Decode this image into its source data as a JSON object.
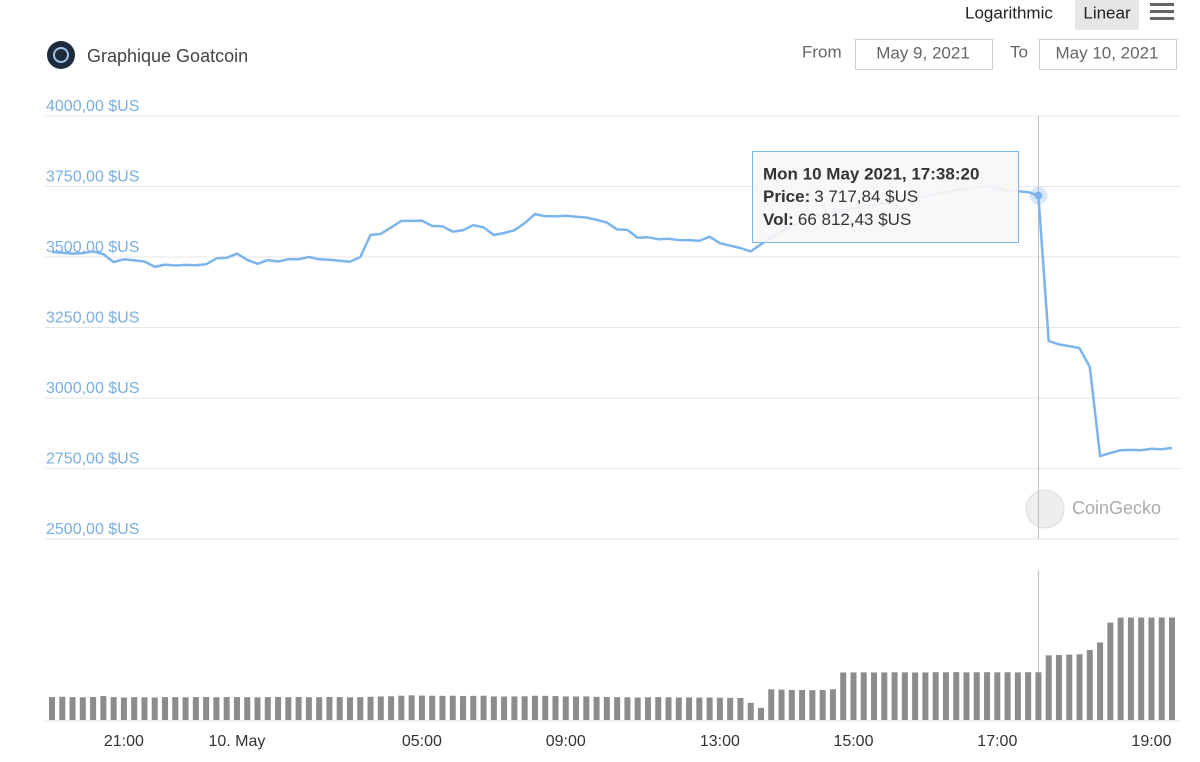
{
  "header": {
    "title": "Graphique Goatcoin",
    "scale_buttons": [
      "Logarithmic",
      "Linear"
    ],
    "from_label": "From",
    "from": "May 9, 2021",
    "to_label": "To",
    "to": "May 10, 2021"
  },
  "chart_data": [
    {
      "type": "line",
      "color": "#7cb5ec",
      "log_scale": false,
      "grid": true,
      "watermark": "CoinGecko",
      "ylim": [
        2500,
        4000
      ],
      "yticks": [
        {
          "value": 2500,
          "label": "2500,00 $US"
        },
        {
          "value": 2750,
          "label": "2750,00 $US"
        },
        {
          "value": 3000,
          "label": "3000,00 $US"
        },
        {
          "value": 3250,
          "label": "3250,00 $US"
        },
        {
          "value": 3500,
          "label": "3500,00 $US"
        },
        {
          "value": 3750,
          "label": "3750,00 $US"
        },
        {
          "value": 4000,
          "label": "4000,00 $US"
        }
      ],
      "values": [
        3518,
        3515,
        3512,
        3514,
        3520,
        3510,
        3482,
        3492,
        3488,
        3484,
        3465,
        3473,
        3470,
        3472,
        3471,
        3474,
        3495,
        3497,
        3512,
        3490,
        3476,
        3489,
        3484,
        3492,
        3492,
        3500,
        3492,
        3490,
        3487,
        3483,
        3500,
        3578,
        3582,
        3605,
        3628,
        3628,
        3629,
        3610,
        3609,
        3590,
        3595,
        3613,
        3605,
        3578,
        3585,
        3595,
        3620,
        3652,
        3645,
        3644,
        3646,
        3643,
        3640,
        3632,
        3622,
        3598,
        3596,
        3568,
        3570,
        3563,
        3565,
        3560,
        3560,
        3557,
        3572,
        3549,
        3540,
        3532,
        3520,
        3545,
        3570,
        3590,
        3610,
        3625,
        3640,
        3650,
        3660,
        3665,
        3672,
        3680,
        3685,
        3690,
        3695,
        3702,
        3708,
        3715,
        3722,
        3730,
        3738,
        3742,
        3748,
        3752,
        3745,
        3735,
        3733,
        3730,
        3717.84,
        3202,
        3190,
        3184,
        3177,
        3110,
        2794,
        2805,
        2815,
        2816,
        2815,
        2820,
        2818,
        2823
      ],
      "tooltip": {
        "index": 96,
        "date": "Mon 10 May 2021, 17:38:20",
        "price_label": "Price:",
        "price": "3 717,84 $US",
        "vol_label": "Vol:",
        "vol": "66 812,43 $US"
      }
    },
    {
      "type": "bar",
      "color": "#8c8c8c",
      "ylim": [
        0,
        210000
      ],
      "categories": [
        null,
        null,
        null,
        null,
        null,
        null,
        null,
        "21:00",
        null,
        null,
        null,
        null,
        null,
        null,
        null,
        null,
        null,
        null,
        "10. May",
        null,
        null,
        null,
        null,
        null,
        null,
        null,
        null,
        null,
        null,
        null,
        null,
        null,
        null,
        null,
        null,
        null,
        "05:00",
        null,
        null,
        null,
        null,
        null,
        null,
        null,
        null,
        null,
        null,
        null,
        null,
        null,
        "09:00",
        null,
        null,
        null,
        null,
        null,
        null,
        null,
        null,
        null,
        null,
        null,
        null,
        null,
        null,
        "13:00",
        null,
        null,
        null,
        null,
        null,
        null,
        null,
        null,
        null,
        null,
        null,
        null,
        "15:00",
        null,
        null,
        null,
        null,
        null,
        null,
        null,
        null,
        null,
        null,
        null,
        null,
        null,
        "17:00",
        null,
        null,
        null,
        null,
        null,
        null,
        null,
        null,
        null,
        null,
        null,
        null,
        null,
        null,
        "19:00",
        null,
        null
      ],
      "values": [
        32000,
        32500,
        32000,
        31800,
        32200,
        33500,
        32000,
        31500,
        32000,
        31800,
        31500,
        32000,
        32100,
        31800,
        32000,
        32200,
        31900,
        32100,
        32000,
        32000,
        31800,
        32000,
        32300,
        32000,
        32100,
        31900,
        32000,
        32200,
        32000,
        31800,
        32000,
        32500,
        33000,
        33200,
        34000,
        34500,
        34200,
        34000,
        33800,
        34000,
        33500,
        33800,
        34000,
        33000,
        32800,
        33000,
        33200,
        34000,
        33800,
        33500,
        33000,
        32800,
        33000,
        32500,
        32200,
        32000,
        31800,
        31500,
        31800,
        32000,
        31800,
        31500,
        31600,
        31400,
        31500,
        31200,
        31000,
        30800,
        24000,
        17000,
        43000,
        42500,
        42000,
        42000,
        41800,
        42000,
        43000,
        66500,
        66600,
        66700,
        66500,
        66600,
        66800,
        66700,
        66500,
        66600,
        66900,
        66800,
        67000,
        66700,
        66800,
        66900,
        66700,
        66800,
        66600,
        66900,
        66812.43,
        90500,
        91000,
        91500,
        92000,
        98000,
        108600,
        136400,
        143400,
        143500,
        143500,
        143500,
        143500,
        143500
      ]
    }
  ]
}
